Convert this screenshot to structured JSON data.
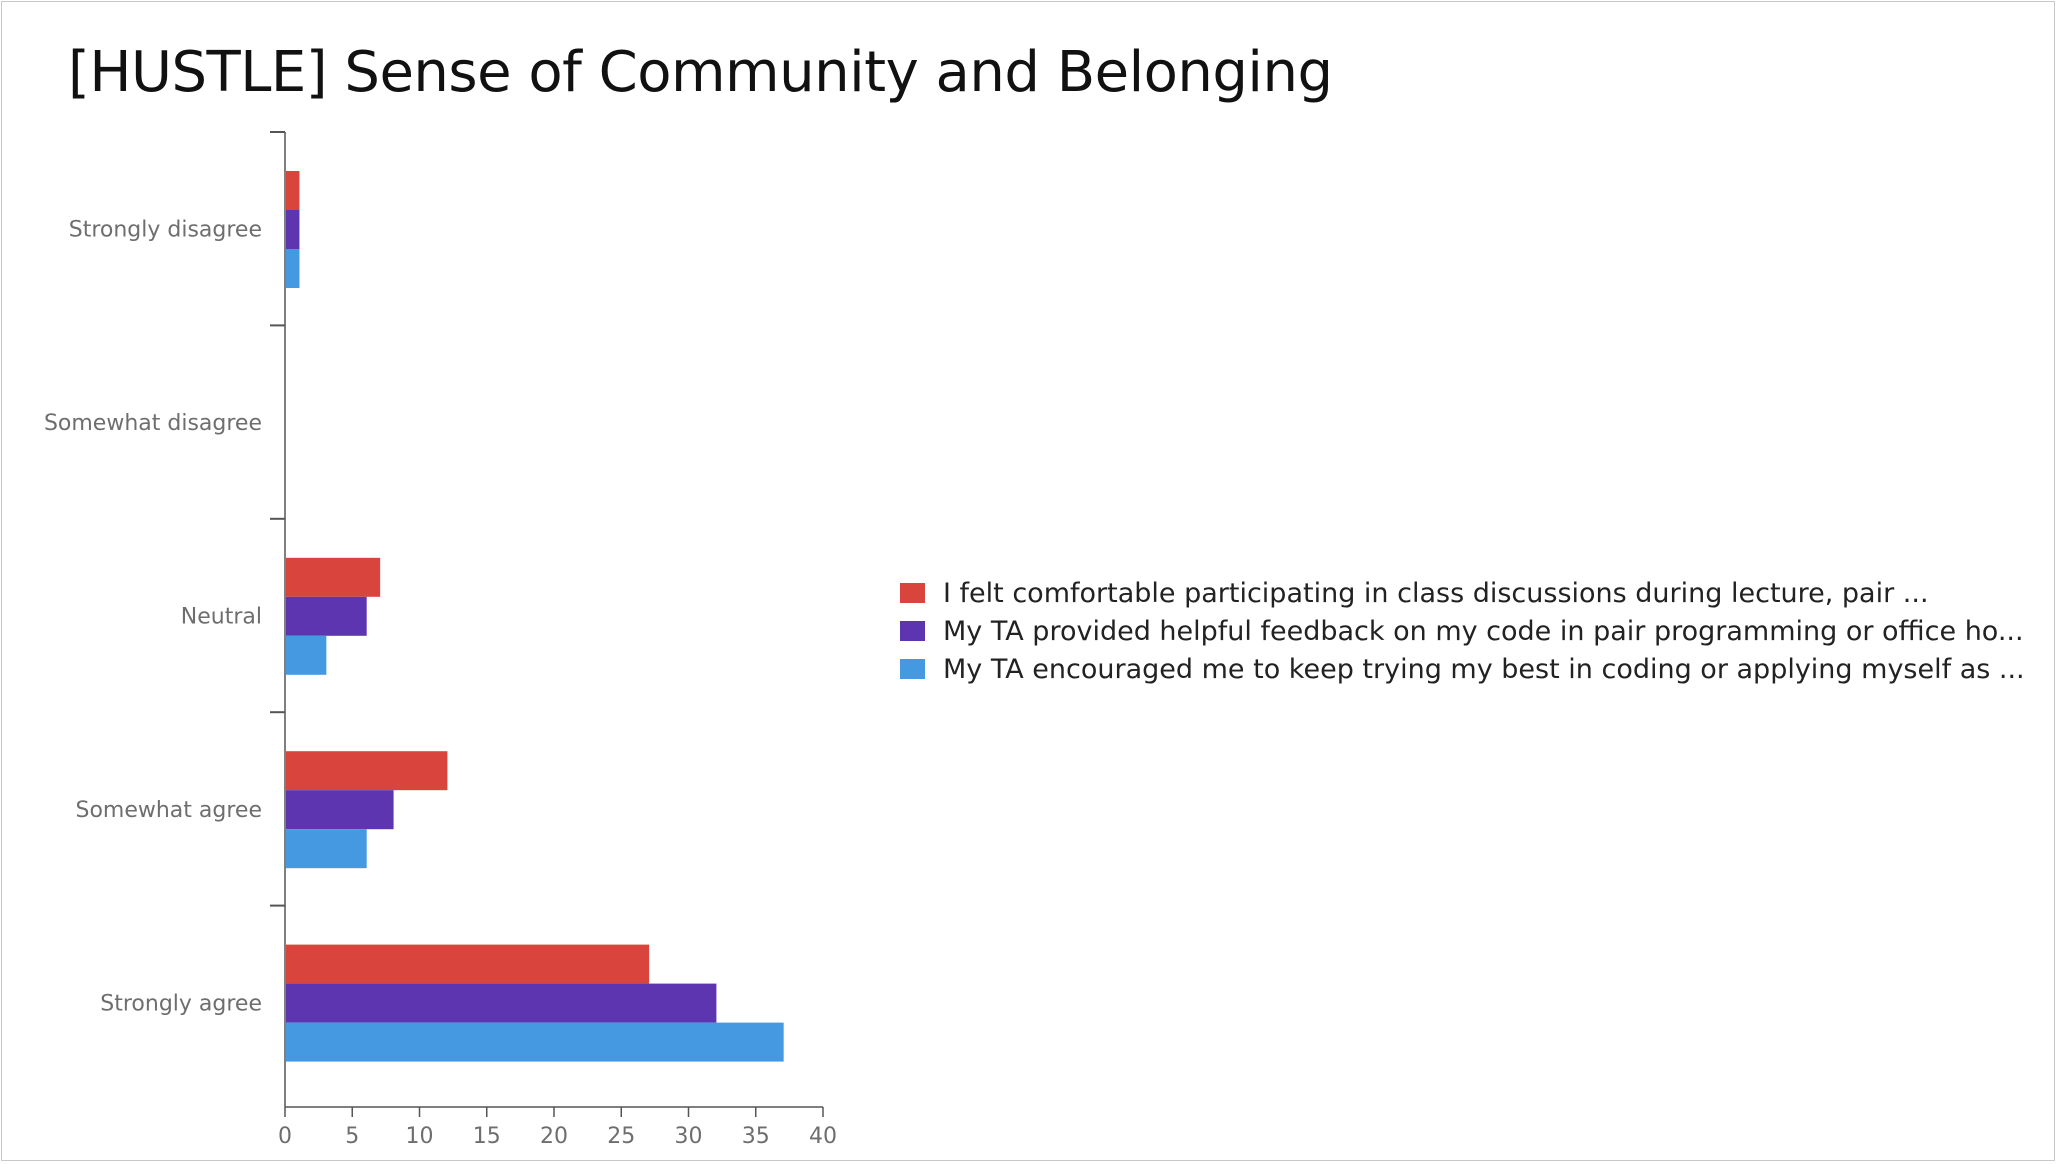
{
  "slide": {
    "title": "[HUSTLE] Sense of Community and Belonging"
  },
  "colors": {
    "series1": "#d9443c",
    "series2": "#5e35b1",
    "series3": "#4599e0",
    "axis": "#555555",
    "label": "#6e6e6e"
  },
  "chart_data": {
    "type": "bar",
    "orientation": "horizontal",
    "title": "[HUSTLE] Sense of Community and Belonging",
    "categories": [
      "Strongly disagree",
      "Somewhat disagree",
      "Neutral",
      "Somewhat agree",
      "Strongly agree"
    ],
    "series": [
      {
        "name": "I felt comfortable participating in class discussions during lecture, pair ...",
        "color": "#d9443c",
        "values": [
          1,
          0,
          7,
          12,
          27
        ]
      },
      {
        "name": "My TA provided helpful feedback on my code in pair programming or office ho...",
        "color": "#5e35b1",
        "values": [
          1,
          0,
          6,
          8,
          32
        ]
      },
      {
        "name": "My TA encouraged me to keep trying my best in coding or applying myself as ...",
        "color": "#4599e0",
        "values": [
          1,
          0,
          3,
          6,
          37
        ]
      }
    ],
    "xlim": [
      0,
      40
    ],
    "xticks": [
      0,
      5,
      10,
      15,
      20,
      25,
      30,
      35,
      40
    ],
    "xlabel": "",
    "ylabel": "",
    "grid": false,
    "legend_position": "right"
  }
}
